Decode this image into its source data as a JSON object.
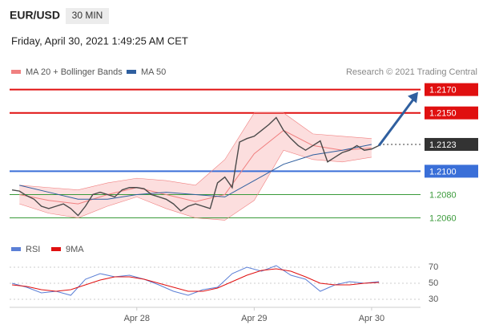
{
  "header": {
    "symbol": "EUR/USD",
    "timeframe": "30 MIN",
    "date": "Friday, April 30, 2021 1:49:25 AM CET"
  },
  "chart_data": {
    "type": "line",
    "credit": "Research © 2021 Trading Central",
    "xlim": [
      -26,
      58
    ],
    "xticks": [
      {
        "value": 0,
        "label": "Apr 28"
      },
      {
        "value": 24,
        "label": "Apr 29"
      },
      {
        "value": 48,
        "label": "Apr 30"
      }
    ],
    "ylim": [
      1.2048,
      1.2178
    ],
    "color": "#4a4a4a",
    "x": [
      -25.5,
      -24,
      -22.5,
      -21,
      -19.5,
      -18,
      -16.5,
      -15,
      -13.5,
      -12,
      -10.5,
      -9,
      -7.5,
      -6,
      -4.5,
      -3,
      -1.5,
      0,
      1.5,
      3,
      4.5,
      6,
      7.5,
      9,
      10.5,
      12,
      13.5,
      15,
      16.5,
      18,
      19.5,
      21,
      22.5,
      24,
      25.5,
      27,
      28.5,
      30,
      31.5,
      33,
      34.5,
      36,
      37.5,
      39,
      40.5,
      42,
      43.5,
      45,
      46.5,
      48,
      49.5
    ],
    "values": [
      1.2084,
      1.2083,
      1.2079,
      1.2076,
      1.207,
      1.2068,
      1.207,
      1.2072,
      1.2068,
      1.2062,
      1.207,
      1.208,
      1.2082,
      1.208,
      1.2078,
      1.2084,
      1.2086,
      1.2086,
      1.2085,
      1.208,
      1.2078,
      1.2076,
      1.2072,
      1.2066,
      1.207,
      1.2072,
      1.207,
      1.2068,
      1.209,
      1.2095,
      1.2086,
      1.2125,
      1.2128,
      1.213,
      1.2135,
      1.214,
      1.2146,
      1.2135,
      1.2128,
      1.2122,
      1.2118,
      1.2122,
      1.2126,
      1.2108,
      1.2112,
      1.2116,
      1.2118,
      1.2122,
      1.2118,
      1.2119,
      1.2122
    ],
    "overlays": [
      {
        "name": "MA 20 + Bollinger Bands",
        "color": "#f08080",
        "x": [
          -24,
          -18,
          -12,
          -6,
          0,
          6,
          12,
          18,
          24,
          30,
          36,
          42,
          48
        ],
        "values": [
          1.208,
          1.2075,
          1.2072,
          1.208,
          1.2086,
          1.208,
          1.2074,
          1.208,
          1.2115,
          1.2135,
          1.2122,
          1.2118,
          1.212
        ],
        "upper": [
          1.2088,
          1.2086,
          1.2084,
          1.209,
          1.2094,
          1.2092,
          1.2088,
          1.211,
          1.215,
          1.215,
          1.2132,
          1.213,
          1.2128
        ],
        "lower": [
          1.2072,
          1.2064,
          1.206,
          1.207,
          1.2078,
          1.2068,
          1.206,
          1.2058,
          1.2075,
          1.2118,
          1.211,
          1.2108,
          1.2112
        ]
      },
      {
        "name": "MA 50",
        "color": "#2f5f9f",
        "x": [
          -24,
          -18,
          -12,
          -6,
          0,
          6,
          12,
          18,
          24,
          30,
          36,
          42,
          48
        ],
        "values": [
          1.2088,
          1.2082,
          1.2076,
          1.2076,
          1.208,
          1.2082,
          1.208,
          1.2078,
          1.2092,
          1.2106,
          1.2114,
          1.2118,
          1.2123
        ]
      }
    ],
    "levels": [
      {
        "value": 1.217,
        "label": "1.2170",
        "color": "#e01010",
        "boxed": true,
        "dashed": false
      },
      {
        "value": 1.215,
        "label": "1.2150",
        "color": "#e01010",
        "boxed": true,
        "dashed": false
      },
      {
        "value": 1.2123,
        "label": "1.2123",
        "color": "#333333",
        "boxed": true,
        "dashed": true
      },
      {
        "value": 1.21,
        "label": "1.2100",
        "color": "#3a6fd8",
        "boxed": true,
        "dashed": false
      },
      {
        "value": 1.208,
        "label": "1.2080",
        "color": "#3a9a3a",
        "boxed": false,
        "dashed": false
      },
      {
        "value": 1.206,
        "label": "1.2060",
        "color": "#3a9a3a",
        "boxed": false,
        "dashed": false
      }
    ],
    "arrow_color": "#2f5f9f",
    "rsi": {
      "ylim": [
        20,
        80
      ],
      "yticks": [
        70,
        50,
        30
      ],
      "x": [
        -25.5,
        -22.5,
        -19.5,
        -16.5,
        -13.5,
        -10.5,
        -7.5,
        -4.5,
        -1.5,
        1.5,
        4.5,
        7.5,
        10.5,
        13.5,
        16.5,
        19.5,
        22.5,
        25.5,
        28.5,
        31.5,
        34.5,
        37.5,
        40.5,
        43.5,
        46.5,
        49.5
      ],
      "series": [
        {
          "name": "RSI",
          "color": "#5b7fd6",
          "values": [
            50,
            45,
            38,
            40,
            35,
            55,
            62,
            58,
            60,
            55,
            48,
            40,
            35,
            42,
            45,
            62,
            70,
            65,
            72,
            60,
            55,
            40,
            48,
            52,
            50,
            52
          ]
        },
        {
          "name": "9MA",
          "color": "#e01010",
          "values": [
            48,
            46,
            42,
            40,
            42,
            48,
            54,
            58,
            58,
            55,
            50,
            45,
            40,
            40,
            44,
            52,
            60,
            66,
            68,
            65,
            58,
            50,
            48,
            48,
            50,
            51
          ]
        }
      ]
    }
  }
}
